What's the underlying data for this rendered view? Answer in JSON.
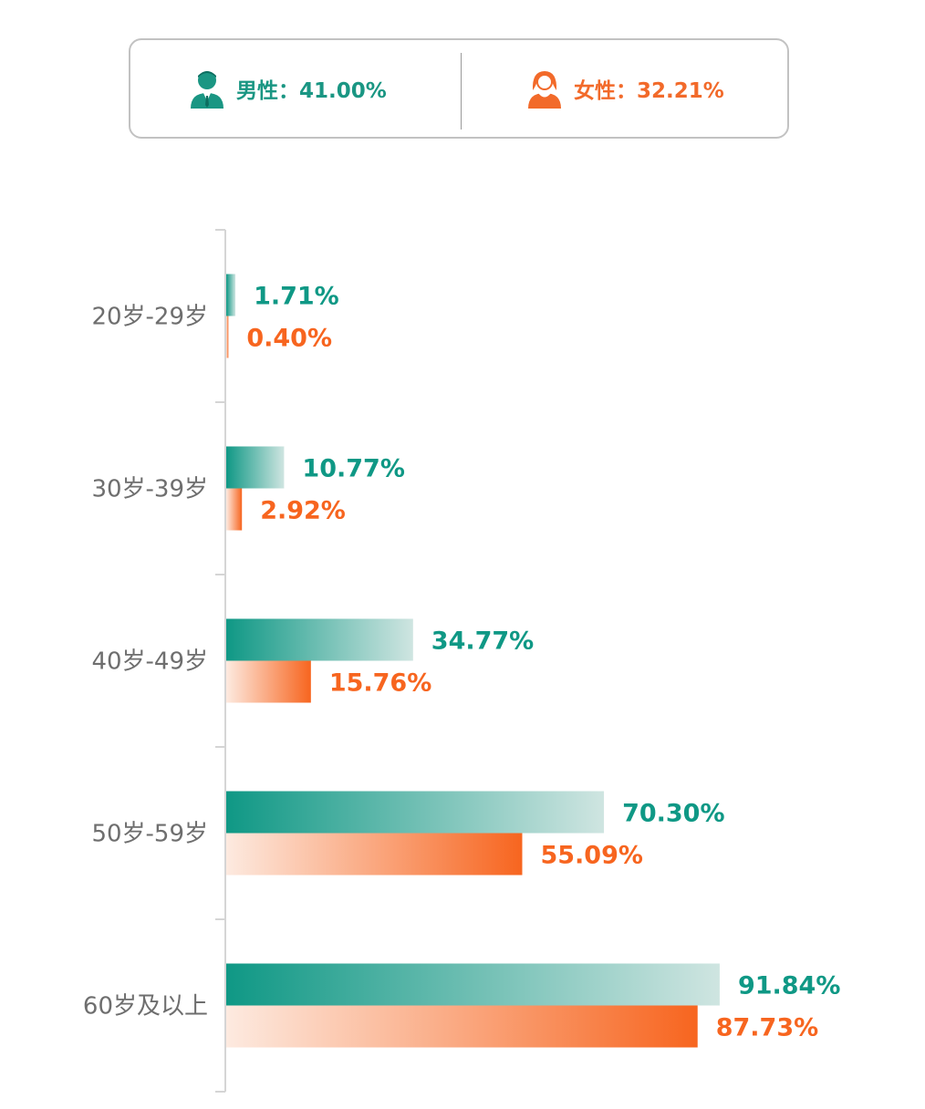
{
  "legend": {
    "male": {
      "label": "男性：41.00%",
      "icon": "male-person-icon"
    },
    "female": {
      "label": "女性：32.21%",
      "icon": "female-person-icon"
    }
  },
  "colors": {
    "male": "#0f9885",
    "male_light": "#cfe5e1",
    "female": "#f7651f",
    "female_light": "#fdeae0",
    "axis": "#d5d5d5",
    "category_text": "#6e6e6e",
    "legend_border": "#c2c2c2"
  },
  "chart_data": {
    "type": "bar",
    "orientation": "horizontal",
    "categories": [
      "20岁-29岁",
      "30岁-39岁",
      "40岁-49岁",
      "50岁-59岁",
      "60岁及以上"
    ],
    "series": [
      {
        "name": "男性",
        "values": [
          1.71,
          10.77,
          34.77,
          70.3,
          91.84
        ],
        "labels": [
          "1.71%",
          "10.77%",
          "34.77%",
          "70.30%",
          "91.84%"
        ]
      },
      {
        "name": "女性",
        "values": [
          0.4,
          2.92,
          15.76,
          55.09,
          87.73
        ],
        "labels": [
          "0.40%",
          "2.92%",
          "15.76%",
          "55.09%",
          "87.73%"
        ]
      }
    ],
    "xlim": [
      0,
      100
    ],
    "grid": false,
    "legend_position": "top"
  }
}
